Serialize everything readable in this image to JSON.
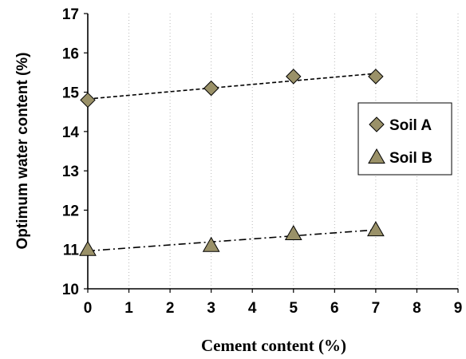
{
  "chart_data": {
    "type": "scatter",
    "title": "",
    "xlabel": "Cement content (%)",
    "ylabel": "Optimum water content (%)",
    "xlim": [
      0,
      9
    ],
    "ylim": [
      10,
      17
    ],
    "xticks": [
      "0",
      "1",
      "2",
      "3",
      "4",
      "5",
      "6",
      "7",
      "8",
      "9"
    ],
    "yticks": [
      "10",
      "11",
      "12",
      "13",
      "14",
      "15",
      "16",
      "17"
    ],
    "grid": "vertical dotted",
    "legend_position": "right",
    "series": [
      {
        "name": "Soil A",
        "marker": "diamond",
        "color": "#9a9168",
        "trendline": "dashed",
        "x": [
          0,
          3,
          5,
          7
        ],
        "y": [
          14.8,
          15.1,
          15.4,
          15.4
        ]
      },
      {
        "name": "Soil B",
        "marker": "triangle",
        "color": "#9a9168",
        "trendline": "dash-dot",
        "x": [
          0,
          3,
          5,
          7
        ],
        "y": [
          11.0,
          11.1,
          11.4,
          11.5
        ]
      }
    ]
  }
}
